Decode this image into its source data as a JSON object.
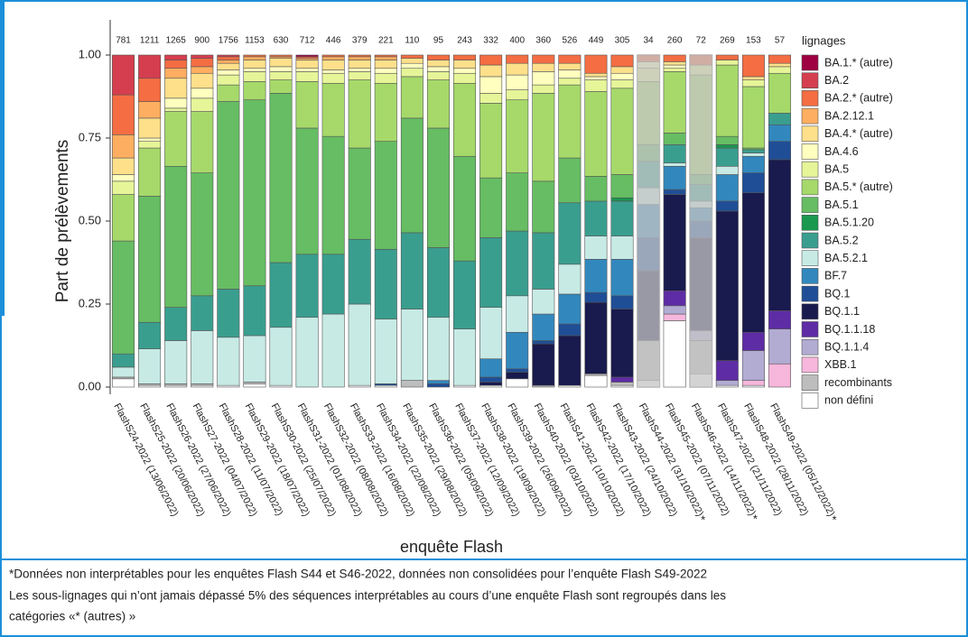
{
  "chart_data": {
    "type": "stacked_bar",
    "x_label": "enquête Flash",
    "y_label": "Part de prélèvements",
    "legend_title": "lignages",
    "legend_position": "right",
    "categories": [
      "FlashS24-2022 (13/06/2022)",
      "FlashS25-2022 (20/06/2022)",
      "FlashS26-2022 (27/06/2022)",
      "FlashS27-2022 (04/07/2022)",
      "FlashS28-2022 (11/07/2022)",
      "FlashS29-2022 (18/07/2022)",
      "FlashS30-2022 (25/07/2022)",
      "FlashS31-2022 (01/08/2022)",
      "FlashS32-2022 (08/08/2022)",
      "FlashS33-2022 (16/08/2022)",
      "FlashS34-2022 (22/08/2022)",
      "FlashS35-2022 (29/08/2022)",
      "FlashS36-2022 (05/09/2022)",
      "FlashS37-2022 (12/09/2022)",
      "FlashS38-2022 (19/09/2022)",
      "FlashS39-2022 (26/09/2022)",
      "FlashS40-2022 (03/10/2022)",
      "FlashS41-2022 (10/10/2022)",
      "FlashS42-2022 (17/10/2022)",
      "FlashS43-2022 (24/10/2022)",
      "FlashS44-2022 (31/10/2022)",
      "FlashS45-2022 (07/11/2022)",
      "FlashS46-2022 (14/11/2022)",
      "FlashS47-2022 (21/11/2022)",
      "FlashS48-2022 (28/11/2022)",
      "FlashS49-2022 (05/12/2022)"
    ],
    "category_marks": [
      null,
      null,
      null,
      null,
      null,
      null,
      null,
      null,
      null,
      null,
      null,
      null,
      null,
      null,
      null,
      null,
      null,
      null,
      null,
      null,
      "*",
      null,
      "*",
      null,
      null,
      "*"
    ],
    "counts": [
      781,
      1211,
      1265,
      900,
      1756,
      1153,
      630,
      712,
      446,
      379,
      221,
      110,
      95,
      243,
      332,
      400,
      360,
      526,
      449,
      305,
      34,
      260,
      72,
      269,
      153,
      57
    ],
    "faded": [
      20,
      22
    ],
    "ylim": [
      0,
      1
    ],
    "yticks": [
      {
        "value": 0,
        "label": "0.00"
      },
      {
        "value": 0.25,
        "label": "0.25"
      },
      {
        "value": 0.5,
        "label": "0.50"
      },
      {
        "value": 0.75,
        "label": "0.75"
      },
      {
        "value": 1,
        "label": "1.00"
      }
    ],
    "series": [
      {
        "name": "BA.1.* (autre)",
        "color": "#9e0142",
        "values": [
          0,
          0,
          0,
          0,
          0,
          0,
          0,
          0.005,
          0,
          0,
          0,
          0,
          0,
          0,
          0,
          0,
          0,
          0,
          0,
          0,
          0,
          0,
          0,
          0,
          0,
          0
        ]
      },
      {
        "name": "BA.2",
        "color": "#d53e4f",
        "values": [
          0.12,
          0.07,
          0.015,
          0.01,
          0.005,
          0,
          0,
          0,
          0,
          0,
          0,
          0,
          0,
          0,
          0,
          0,
          0,
          0,
          0,
          0,
          0,
          0,
          0,
          0,
          0,
          0
        ]
      },
      {
        "name": "BA.2.* (autre)",
        "color": "#f46d43",
        "values": [
          0.12,
          0.07,
          0.025,
          0.025,
          0.01,
          0.005,
          0.005,
          0.005,
          0.005,
          0.005,
          0.005,
          0.01,
          0.015,
          0.015,
          0.03,
          0.025,
          0.025,
          0.025,
          0.055,
          0.035,
          0.02,
          0.02,
          0.03,
          0.015,
          0.065,
          0.025
        ]
      },
      {
        "name": "BA.2.12.1",
        "color": "#fdae61",
        "values": [
          0.07,
          0.05,
          0.03,
          0.02,
          0.01,
          0.01,
          0.005,
          0.005,
          0.01,
          0.01,
          0.01,
          0,
          0,
          0,
          0,
          0,
          0,
          0,
          0,
          0,
          0,
          0,
          0,
          0,
          0,
          0
        ]
      },
      {
        "name": "BA.4.* (autre)",
        "color": "#fee08b",
        "values": [
          0.05,
          0.06,
          0.06,
          0.045,
          0.02,
          0.025,
          0.025,
          0.025,
          0.03,
          0.025,
          0.025,
          0.015,
          0.02,
          0.025,
          0.035,
          0.035,
          0.025,
          0.02,
          0.01,
          0.02,
          0,
          0.01,
          0,
          0,
          0.01,
          0.01
        ]
      },
      {
        "name": "BA.4.6",
        "color": "#ffffbf",
        "values": [
          0.02,
          0.01,
          0.03,
          0.03,
          0.015,
          0.01,
          0.015,
          0.01,
          0.01,
          0.01,
          0.015,
          0.015,
          0.015,
          0.015,
          0.05,
          0.045,
          0.04,
          0.025,
          0.01,
          0.02,
          0.02,
          0.01,
          0,
          0,
          0,
          0
        ]
      },
      {
        "name": "BA.5",
        "color": "#e6f598",
        "values": [
          0.04,
          0.02,
          0.01,
          0.04,
          0.03,
          0.03,
          0.025,
          0.03,
          0.03,
          0.025,
          0.03,
          0.025,
          0.025,
          0.03,
          0.03,
          0.03,
          0.025,
          0.02,
          0.035,
          0.025,
          0.04,
          0.01,
          0.03,
          0.015,
          0.02,
          0.02
        ]
      },
      {
        "name": "BA.5.* (autre)",
        "color": "#a6d96a",
        "values": [
          0.14,
          0.145,
          0.165,
          0.185,
          0.05,
          0.055,
          0.04,
          0.14,
          0.16,
          0.205,
          0.175,
          0.125,
          0.145,
          0.22,
          0.225,
          0.22,
          0.265,
          0.22,
          0.255,
          0.26,
          0.19,
          0.185,
          0.3,
          0.215,
          0.185,
          0.12
        ]
      },
      {
        "name": "BA.5.1",
        "color": "#66bd63",
        "values": [
          0.34,
          0.38,
          0.425,
          0.37,
          0.565,
          0.56,
          0.51,
          0.38,
          0.355,
          0.275,
          0.325,
          0.345,
          0.36,
          0.315,
          0.18,
          0.175,
          0.155,
          0.135,
          0.075,
          0.07,
          0.05,
          0.035,
          0.03,
          0.025,
          0.005,
          0
        ]
      },
      {
        "name": "BA.5.1.20",
        "color": "#1a9850",
        "values": [
          0,
          0,
          0,
          0,
          0,
          0,
          0,
          0,
          0,
          0,
          0,
          0,
          0,
          0,
          0,
          0,
          0,
          0,
          0,
          0.01,
          0,
          0,
          0,
          0.01,
          0,
          0
        ]
      },
      {
        "name": "BA.5.2",
        "color": "#3a9e8f",
        "values": [
          0.04,
          0.08,
          0.1,
          0.105,
          0.145,
          0.15,
          0.195,
          0.19,
          0.18,
          0.195,
          0.21,
          0.23,
          0.21,
          0.205,
          0.21,
          0.195,
          0.17,
          0.185,
          0.105,
          0.105,
          0.08,
          0.055,
          0.05,
          0.055,
          0.01,
          0.035
        ]
      },
      {
        "name": "BA.5.2.1",
        "color": "#c7eae5",
        "values": [
          0.03,
          0.105,
          0.13,
          0.16,
          0.145,
          0.14,
          0.175,
          0.21,
          0.22,
          0.245,
          0.195,
          0.215,
          0.19,
          0.17,
          0.155,
          0.11,
          0.075,
          0.09,
          0.07,
          0.07,
          0.05,
          0.01,
          0.02,
          0.025,
          0.01,
          0
        ]
      },
      {
        "name": "BF.7",
        "color": "#3288bd",
        "values": [
          0,
          0,
          0,
          0,
          0,
          0,
          0,
          0,
          0,
          0,
          0,
          0,
          0.01,
          0,
          0.055,
          0.11,
          0.08,
          0.09,
          0.1,
          0.11,
          0.1,
          0.07,
          0.04,
          0.08,
          0.05,
          0.05
        ]
      },
      {
        "name": "BQ.1",
        "color": "#1f4e96",
        "values": [
          0,
          0,
          0,
          0,
          0,
          0,
          0,
          0,
          0,
          0,
          0.005,
          0,
          0.01,
          0,
          0.015,
          0.01,
          0.01,
          0.035,
          0.03,
          0.04,
          0.1,
          0.015,
          0.05,
          0.03,
          0.06,
          0.055
        ]
      },
      {
        "name": "BQ.1.1",
        "color": "#191a4d",
        "values": [
          0,
          0,
          0,
          0,
          0,
          0,
          0,
          0,
          0,
          0,
          0,
          0,
          0,
          0,
          0.01,
          0.02,
          0.125,
          0.15,
          0.215,
          0.205,
          0.21,
          0.29,
          0.28,
          0.45,
          0.42,
          0.455
        ]
      },
      {
        "name": "BQ.1.1.18",
        "color": "#5e2ca5",
        "values": [
          0,
          0,
          0,
          0,
          0,
          0,
          0,
          0,
          0,
          0,
          0,
          0,
          0,
          0,
          0,
          0,
          0,
          0,
          0,
          0.015,
          0,
          0.045,
          0,
          0.06,
          0.055,
          0.055
        ]
      },
      {
        "name": "BQ.1.1.4",
        "color": "#b2abd2",
        "values": [
          0,
          0,
          0,
          0,
          0,
          0,
          0,
          0,
          0,
          0,
          0,
          0,
          0,
          0,
          0,
          0,
          0,
          0,
          0,
          0,
          0,
          0.025,
          0.03,
          0.015,
          0.09,
          0.105
        ]
      },
      {
        "name": "XBB.1",
        "color": "#f7b6dc",
        "values": [
          0,
          0,
          0,
          0,
          0,
          0,
          0,
          0,
          0,
          0,
          0,
          0,
          0,
          0,
          0,
          0,
          0,
          0,
          0,
          0,
          0,
          0.02,
          0,
          0,
          0.015,
          0.07
        ]
      },
      {
        "name": "recombinants",
        "color": "#bdbdbd",
        "values": [
          0.005,
          0.005,
          0.005,
          0.005,
          0,
          0.005,
          0,
          0,
          0,
          0,
          0,
          0.02,
          0,
          0,
          0,
          0,
          0.005,
          0,
          0.005,
          0.01,
          0.12,
          0,
          0.1,
          0,
          0,
          0
        ]
      },
      {
        "name": "non défini",
        "color": "#ffffff",
        "values": [
          0.025,
          0.005,
          0.005,
          0.005,
          0.005,
          0.01,
          0.005,
          0,
          0,
          0.005,
          0.005,
          0,
          0,
          0.005,
          0.005,
          0.025,
          0,
          0.005,
          0.035,
          0.005,
          0.02,
          0.2,
          0.04,
          0.005,
          0.005,
          0
        ]
      }
    ]
  },
  "notes": [
    "*Données non interprétables pour les enquêtes Flash S44 et S46-2022, données non consolidées pour l’enquête Flash S49-2022",
    "Les sous-lignages qui n’ont jamais dépassé 5% des séquences interprétables au cours d’une enquête Flash sont regroupés dans les",
    "catégories «* (autres) »"
  ]
}
